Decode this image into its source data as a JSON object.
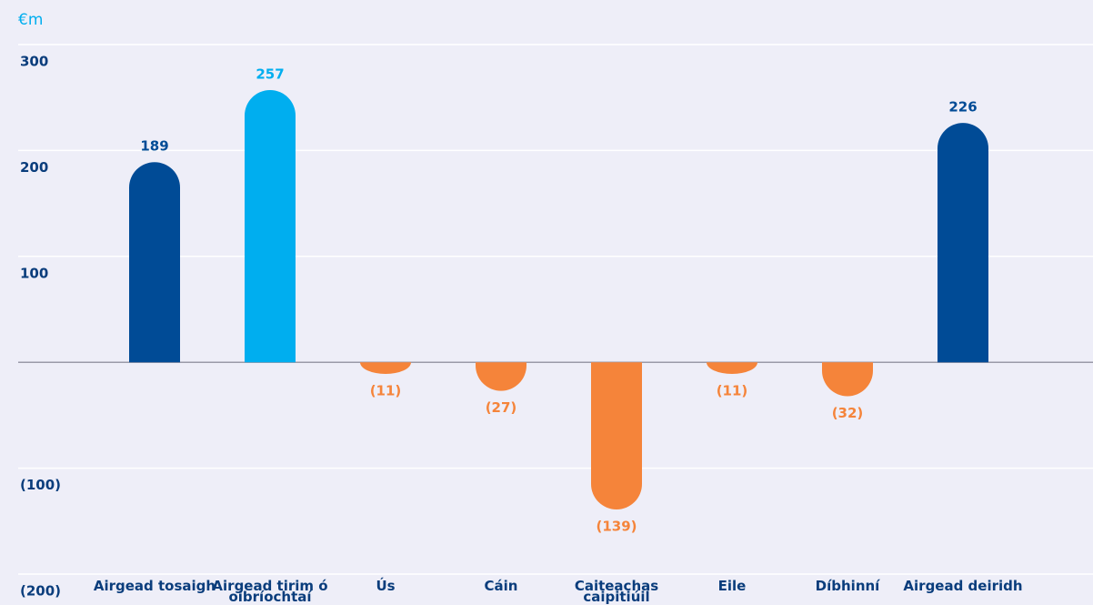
{
  "chart_data": {
    "type": "bar",
    "unit_label": "€m",
    "categories": [
      "Airgead tosaigh",
      "Airgead tirim ó oibríochtaí",
      "Ús",
      "Cáin",
      "Caiteachas caipitiúil",
      "Eile",
      "Díbhinní",
      "Airgead deiridh"
    ],
    "values": [
      189,
      257,
      -11,
      -27,
      -139,
      -11,
      -32,
      226
    ],
    "value_labels": [
      "189",
      "257",
      "(11)",
      "(27)",
      "(139)",
      "(11)",
      "(32)",
      "226"
    ],
    "colors": [
      "#004b96",
      "#00aeef",
      "#f5843a",
      "#f5843a",
      "#f5843a",
      "#f5843a",
      "#f5843a",
      "#004b96"
    ],
    "ylim": [
      -200,
      300
    ],
    "yticks": [
      300,
      200,
      100,
      {
        "value": -100,
        "label": "(100)"
      },
      {
        "value": -200,
        "label": "(200)"
      }
    ],
    "grid": true
  }
}
